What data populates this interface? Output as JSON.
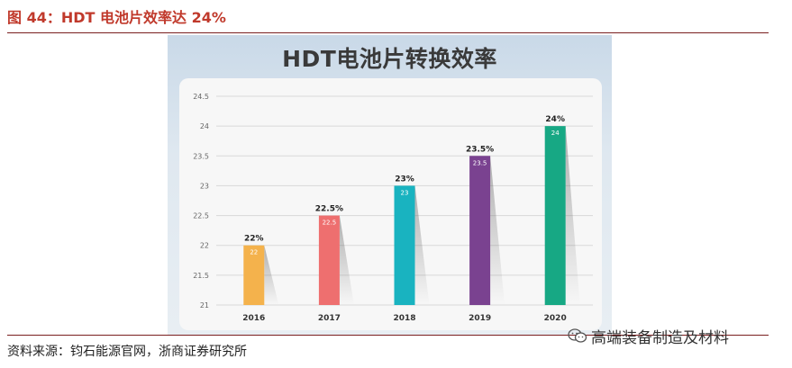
{
  "figure": {
    "caption": "图 44：HDT 电池片效率达 24%",
    "source": "资料来源：钧石能源官网，浙商证券研究所",
    "watermark": "高端装备制造及材料",
    "watermark_icon": "wechat-icon"
  },
  "colors": {
    "caption": "#c0392b",
    "rule": "#7a1f1f",
    "bars": [
      "#f4b24c",
      "#ee6f6f",
      "#19b3c0",
      "#7a4290",
      "#17a884"
    ],
    "bar_inside_label": "#ffffff",
    "top_label": "#222222",
    "grid": "#d9d9d9",
    "axis_text": "#666666"
  },
  "chart_data": {
    "type": "bar",
    "title": "HDT电池片转换效率",
    "categories": [
      "2016",
      "2017",
      "2018",
      "2019",
      "2020"
    ],
    "values": [
      22,
      22.5,
      23,
      23.5,
      24
    ],
    "top_labels": [
      "22%",
      "22.5%",
      "23%",
      "23.5%",
      "24%"
    ],
    "inside_labels": [
      "22",
      "22.5",
      "23",
      "23.5",
      "24"
    ],
    "y_ticks": [
      "21",
      "21.5",
      "22",
      "22.5",
      "23",
      "23.5",
      "24",
      "24.5"
    ],
    "ylim": [
      21,
      24.5
    ],
    "xlabel": "",
    "ylabel": "",
    "grid": true,
    "legend": "none"
  }
}
